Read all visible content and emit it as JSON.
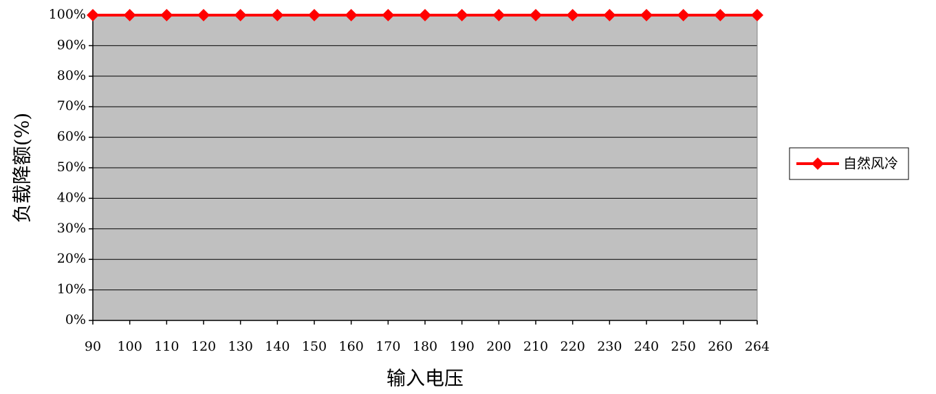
{
  "chart_data": {
    "type": "line",
    "title": "",
    "xlabel": "输入电压",
    "ylabel": "负载降额(%)",
    "categories": [
      "90",
      "100",
      "110",
      "120",
      "130",
      "140",
      "150",
      "160",
      "170",
      "180",
      "190",
      "200",
      "210",
      "220",
      "230",
      "240",
      "250",
      "260",
      "264"
    ],
    "series": [
      {
        "name": "自然风冷",
        "color": "#ff0000",
        "marker": "diamond",
        "values": [
          100,
          100,
          100,
          100,
          100,
          100,
          100,
          100,
          100,
          100,
          100,
          100,
          100,
          100,
          100,
          100,
          100,
          100,
          100
        ]
      }
    ],
    "yticks": [
      "0%",
      "10%",
      "20%",
      "30%",
      "40%",
      "50%",
      "60%",
      "70%",
      "80%",
      "90%",
      "100%"
    ],
    "ylim": [
      0,
      100
    ],
    "grid": true,
    "legend_position": "right",
    "plot_background": "#c0c0c0"
  }
}
